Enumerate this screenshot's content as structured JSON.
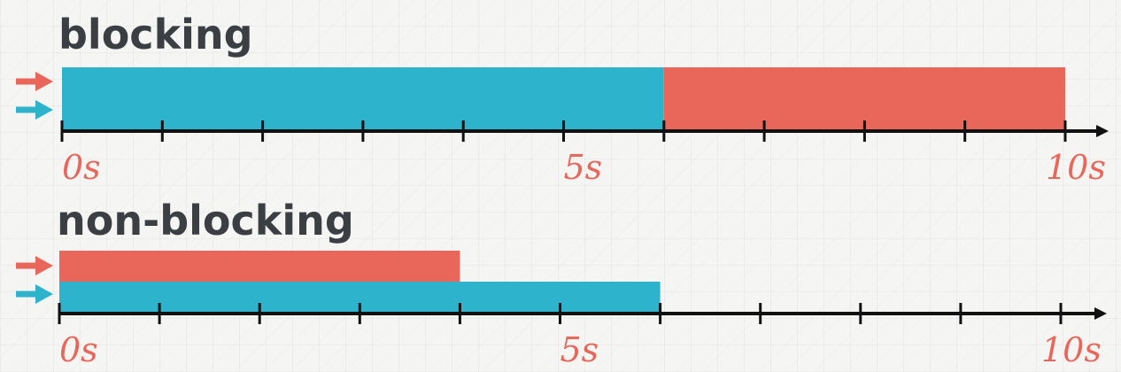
{
  "chart_data": [
    {
      "type": "bar",
      "title": "blocking",
      "xlim": [
        0,
        10
      ],
      "x_ticks": [
        0,
        1,
        2,
        3,
        4,
        5,
        6,
        7,
        8,
        9,
        10
      ],
      "x_tick_labels": [
        {
          "value": 0,
          "label": "0s"
        },
        {
          "value": 5,
          "label": "5s"
        },
        {
          "value": 10,
          "label": "10s"
        }
      ],
      "series": [
        {
          "color": "#2eb3cc",
          "start": 0,
          "end": 6
        },
        {
          "color": "#e8675a",
          "start": 6,
          "end": 10
        }
      ],
      "lanes": [
        {
          "arrow_color": "#e8675a"
        },
        {
          "arrow_color": "#2eb3cc"
        }
      ]
    },
    {
      "type": "bar",
      "title": "non-blocking",
      "xlim": [
        0,
        10
      ],
      "x_ticks": [
        0,
        1,
        2,
        3,
        4,
        5,
        6,
        7,
        8,
        9,
        10
      ],
      "x_tick_labels": [
        {
          "value": 0,
          "label": "0s"
        },
        {
          "value": 5,
          "label": "5s"
        },
        {
          "value": 10,
          "label": "10s"
        }
      ],
      "series": [
        {
          "color": "#e8675a",
          "start": 0,
          "end": 4,
          "lane": 0
        },
        {
          "color": "#2eb3cc",
          "start": 0,
          "end": 6,
          "lane": 1
        }
      ],
      "lanes": [
        {
          "arrow_color": "#e8675a"
        },
        {
          "arrow_color": "#2eb3cc"
        }
      ]
    }
  ],
  "colors": {
    "axis": "#111111",
    "heading": "#3b3f44",
    "label": "#e8675a"
  }
}
